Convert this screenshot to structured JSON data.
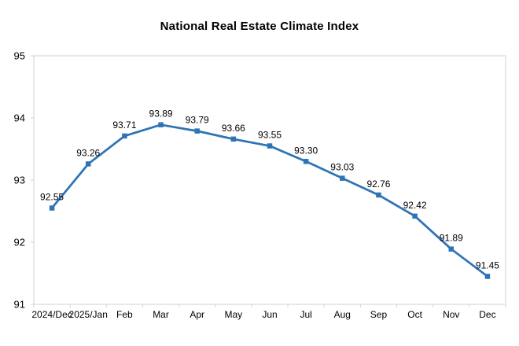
{
  "chart_data": {
    "type": "line",
    "title": "National Real Estate Climate Index",
    "categories": [
      "2024/Dec",
      "2025/Jan",
      "Feb",
      "Mar",
      "Apr",
      "May",
      "Jun",
      "Jul",
      "Aug",
      "Sep",
      "Oct",
      "Nov",
      "Dec"
    ],
    "series": [
      {
        "name": "National Real Estate Climate Index",
        "values": [
          92.55,
          93.26,
          93.71,
          93.89,
          93.79,
          93.66,
          93.55,
          93.3,
          93.03,
          92.76,
          92.42,
          91.89,
          91.45
        ]
      }
    ],
    "data_labels": [
      "92.55",
      "93.26",
      "93.71",
      "93.89",
      "93.79",
      "93.66",
      "93.55",
      "93.30",
      "93.03",
      "92.76",
      "92.42",
      "91.89",
      "91.45"
    ],
    "ylim": [
      91,
      95
    ],
    "yticks": [
      "91",
      "92",
      "93",
      "94",
      "95"
    ],
    "grid": false,
    "legend_position": "none",
    "colors": {
      "line": "#2E74B5",
      "marker": "#2E74B5",
      "axis": "#D9D9D9",
      "text": "#000000"
    },
    "marker_shape": "square"
  }
}
